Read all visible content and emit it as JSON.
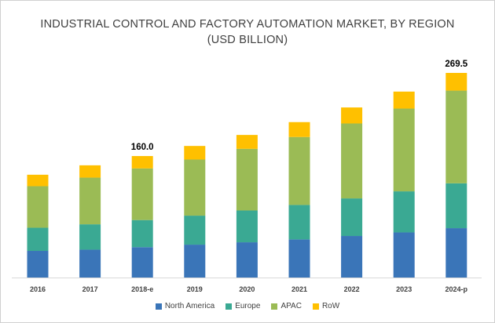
{
  "chart_data": {
    "type": "bar",
    "stacked": true,
    "title_line1": "INDUSTRIAL CONTROL AND FACTORY AUTOMATION MARKET, BY REGION",
    "title_line2": "(USD BILLION)",
    "categories": [
      "2016",
      "2017",
      "2018-e",
      "2019",
      "2020",
      "2021",
      "2022",
      "2023",
      "2024-p"
    ],
    "series": [
      {
        "name": "North America",
        "color": "#3a75b8",
        "values": [
          35.1,
          36.7,
          40.0,
          43.3,
          46.4,
          50.2,
          54.7,
          59.4,
          65.0
        ]
      },
      {
        "name": "Europe",
        "color": "#3aa993",
        "values": [
          30.5,
          33.4,
          35.7,
          38.2,
          41.9,
          45.4,
          49.5,
          54.1,
          59.1
        ]
      },
      {
        "name": "APAC",
        "color": "#9bbb55",
        "values": [
          54.7,
          61.5,
          68.0,
          73.9,
          81.2,
          89.5,
          98.7,
          109.0,
          122.1
        ]
      },
      {
        "name": "RoW",
        "color": "#ffc000",
        "values": [
          15.1,
          16.2,
          16.3,
          17.9,
          18.3,
          19.6,
          21.1,
          22.4,
          23.3
        ]
      }
    ],
    "data_labels": {
      "2018-e": "160.0",
      "2024-p": "269.5"
    },
    "ylim": [
      0,
      280
    ],
    "grid": false,
    "legend": "bottom"
  }
}
